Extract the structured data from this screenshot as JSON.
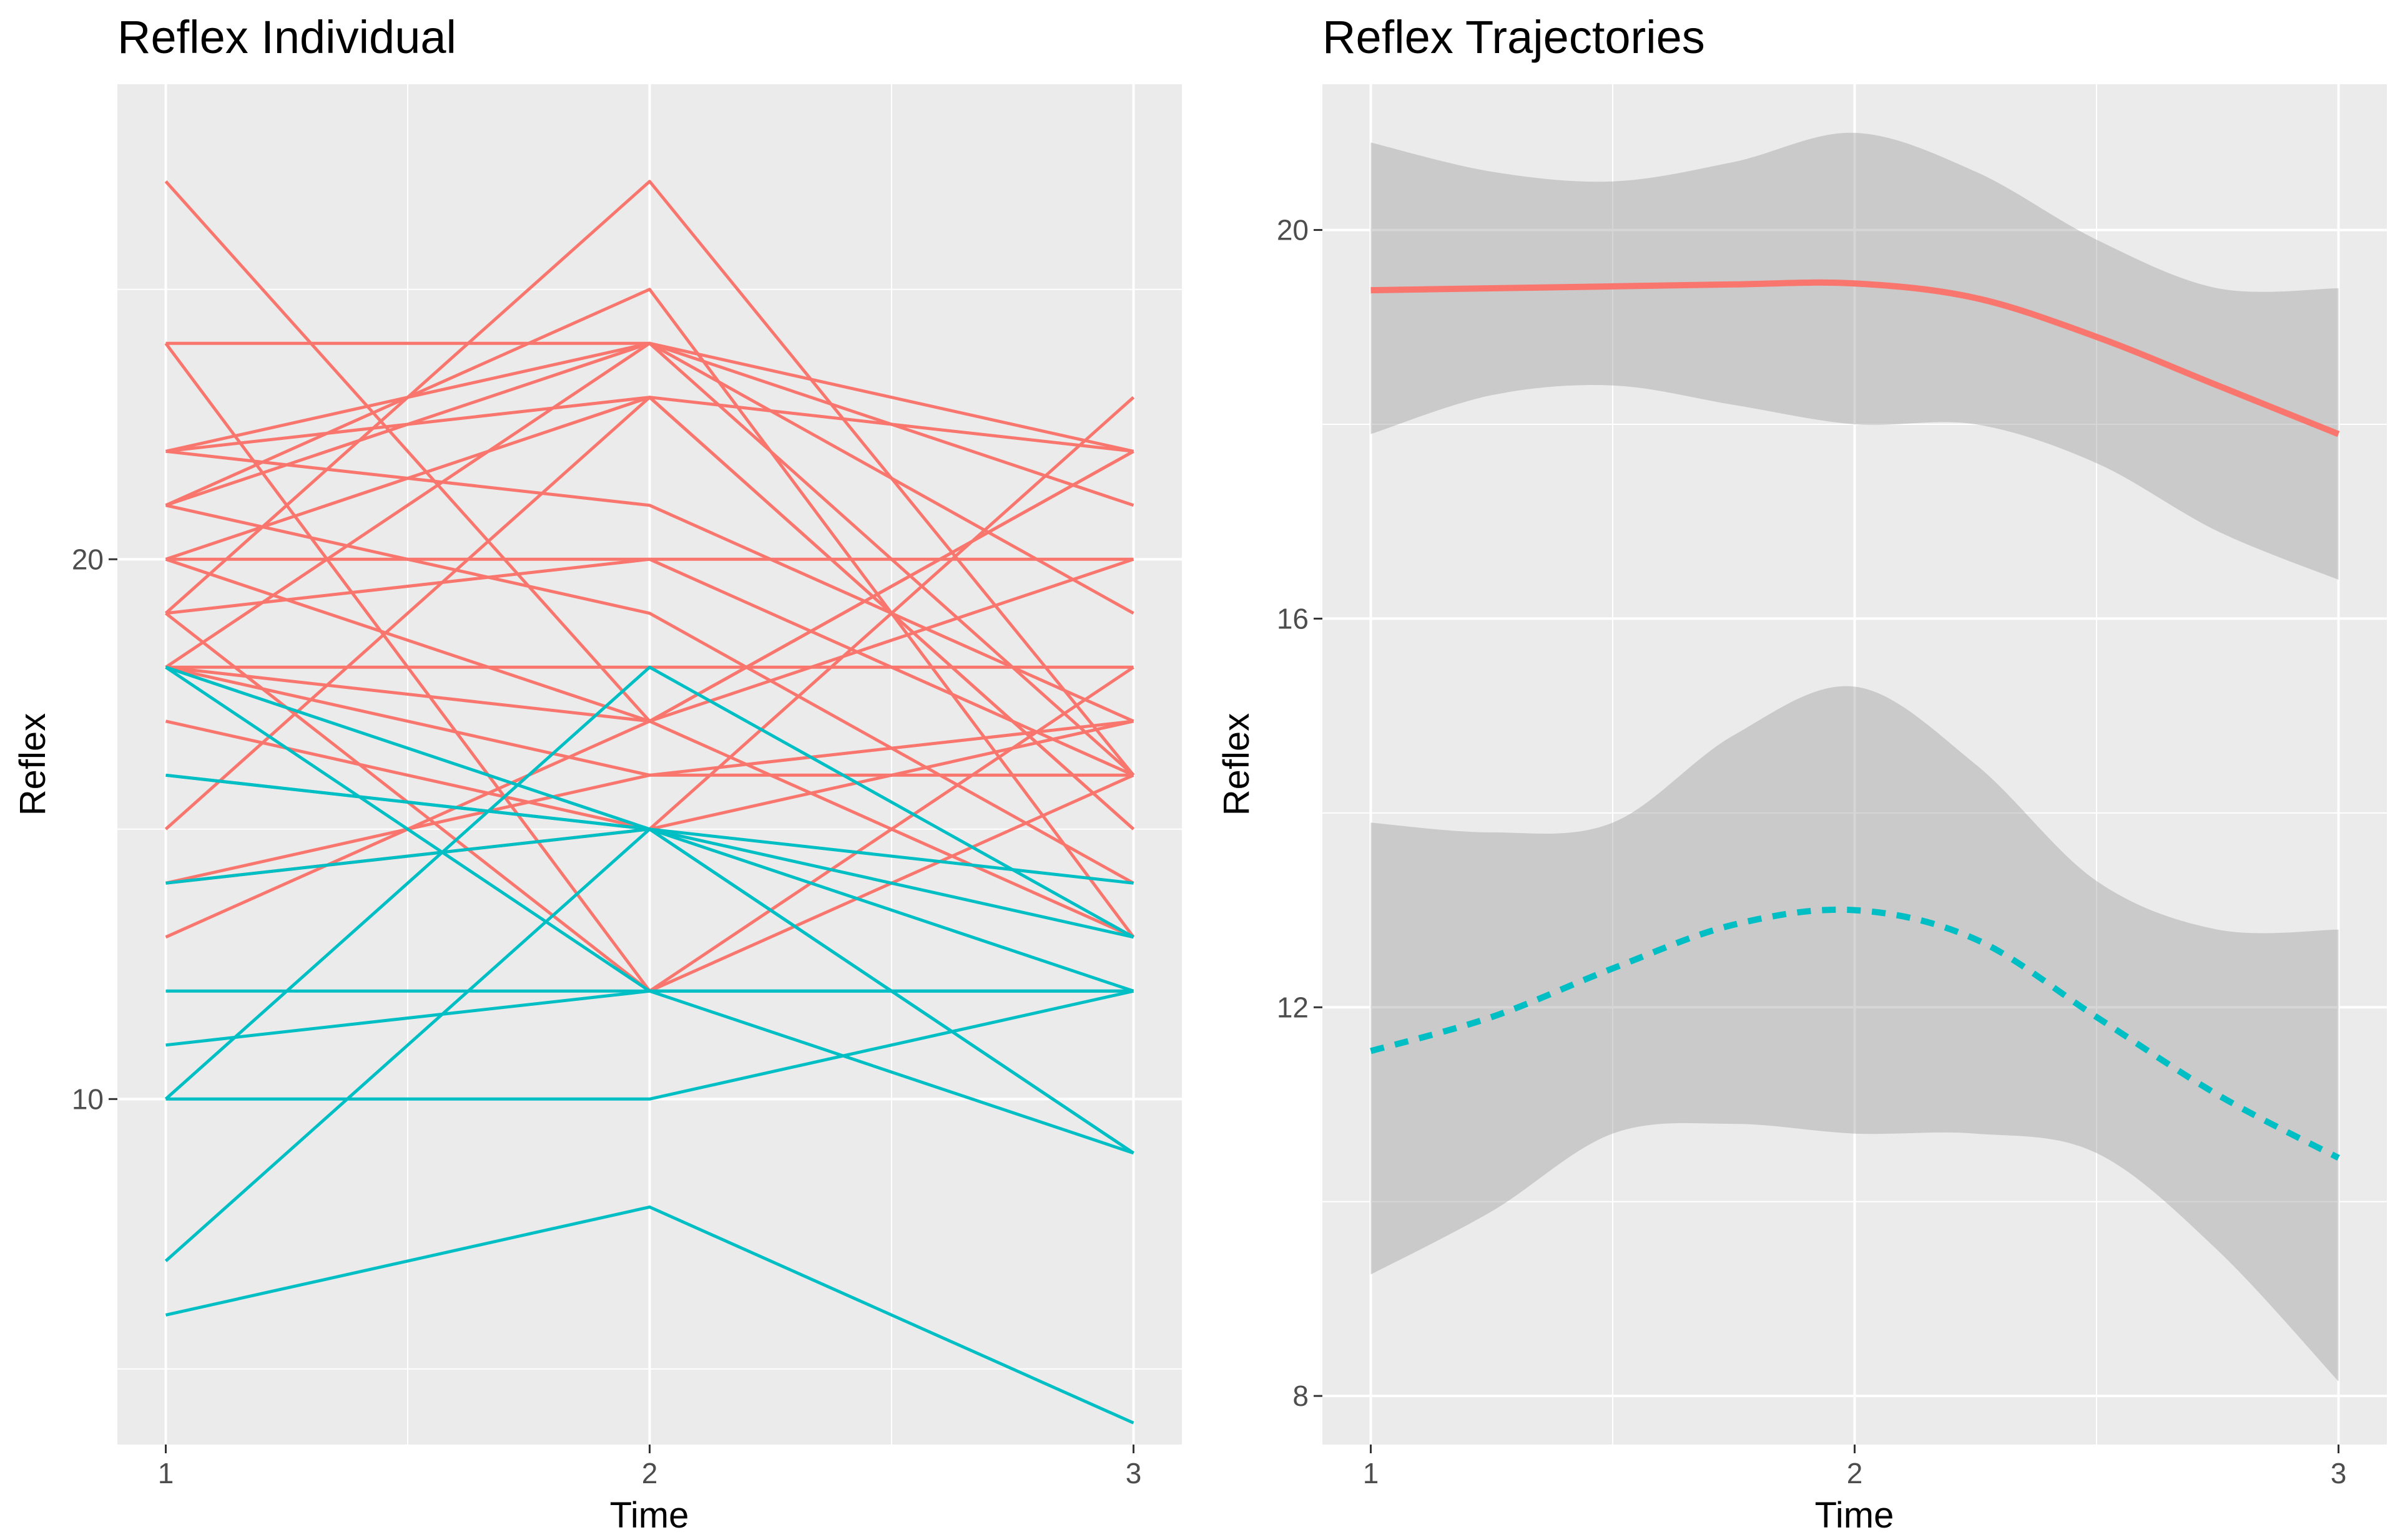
{
  "colors": {
    "series_high": "#F8766D",
    "series_low": "#00BFC4",
    "panel_background": "#EBEBEB",
    "grid": "#FFFFFF",
    "ribbon": "#999999"
  },
  "chart_data": [
    {
      "type": "line",
      "title": "Reflex Individual",
      "xlabel": "Time",
      "ylabel": "Reflex",
      "x": [
        1,
        2,
        3
      ],
      "xlim": [
        0.9,
        3.1
      ],
      "ylim": [
        3.6,
        28.8
      ],
      "x_ticks": [
        1,
        2,
        3
      ],
      "y_ticks": [
        10,
        20
      ],
      "grid": true,
      "legend": "none",
      "series": [
        {
          "name": "group-1",
          "color": "#F8766D",
          "lines": [
            [
              27,
              17,
              13
            ],
            [
              24,
              24,
              19
            ],
            [
              24,
              12,
              16
            ],
            [
              22,
              24,
              22
            ],
            [
              22,
              21,
              17
            ],
            [
              22,
              23,
              15
            ],
            [
              21,
              25,
              13
            ],
            [
              21,
              24,
              21
            ],
            [
              21,
              19,
              14
            ],
            [
              20,
              23,
              22
            ],
            [
              20,
              17,
              20
            ],
            [
              20,
              20,
              16
            ],
            [
              19,
              27,
              16
            ],
            [
              19,
              20,
              20
            ],
            [
              19,
              12,
              18
            ],
            [
              18,
              17,
              22
            ],
            [
              18,
              24,
              16
            ],
            [
              18,
              16,
              17
            ],
            [
              15,
              23,
              15
            ],
            [
              14,
              15,
              17
            ],
            [
              13,
              17,
              22
            ],
            [
              17,
              15,
              23
            ],
            [
              14,
              16,
              16
            ],
            [
              18,
              18,
              18
            ]
          ]
        },
        {
          "name": "group-2",
          "color": "#00BFC4",
          "lines": [
            [
              18,
              12,
              12
            ],
            [
              18,
              15,
              9
            ],
            [
              16,
              15,
              14
            ],
            [
              16,
              15,
              13
            ],
            [
              14,
              15,
              12
            ],
            [
              12,
              12,
              12
            ],
            [
              11,
              12,
              9
            ],
            [
              10,
              10,
              12
            ],
            [
              10,
              18,
              13
            ],
            [
              7,
              15,
              9
            ],
            [
              6,
              8,
              4
            ]
          ]
        }
      ]
    },
    {
      "type": "line",
      "title": "Reflex Trajectories",
      "xlabel": "Time",
      "ylabel": "Reflex",
      "x": [
        1,
        1.25,
        1.5,
        1.75,
        2,
        2.25,
        2.5,
        2.75,
        3
      ],
      "xlim": [
        0.9,
        3.1
      ],
      "ylim": [
        7.5,
        21.5
      ],
      "x_ticks": [
        1,
        2,
        3
      ],
      "y_ticks": [
        8,
        12,
        16,
        20
      ],
      "grid": true,
      "legend": "none",
      "series": [
        {
          "name": "group-1",
          "color": "#F8766D",
          "linetype": "solid",
          "values": [
            19.38,
            19.4,
            19.42,
            19.44,
            19.45,
            19.3,
            18.9,
            18.4,
            17.9
          ],
          "lower": [
            17.9,
            18.3,
            18.4,
            18.2,
            18.0,
            18.0,
            17.6,
            16.9,
            16.4
          ],
          "upper": [
            20.9,
            20.6,
            20.5,
            20.7,
            21.0,
            20.6,
            19.9,
            19.4,
            19.4
          ]
        },
        {
          "name": "group-2",
          "color": "#00BFC4",
          "linetype": "dashed",
          "values": [
            11.55,
            11.9,
            12.4,
            12.85,
            13.0,
            12.7,
            11.9,
            11.1,
            10.45
          ],
          "lower": [
            9.25,
            9.9,
            10.7,
            10.8,
            10.7,
            10.7,
            10.5,
            9.5,
            8.15
          ],
          "upper": [
            13.9,
            13.8,
            13.9,
            14.8,
            15.3,
            14.5,
            13.3,
            12.8,
            12.8
          ]
        }
      ]
    }
  ]
}
